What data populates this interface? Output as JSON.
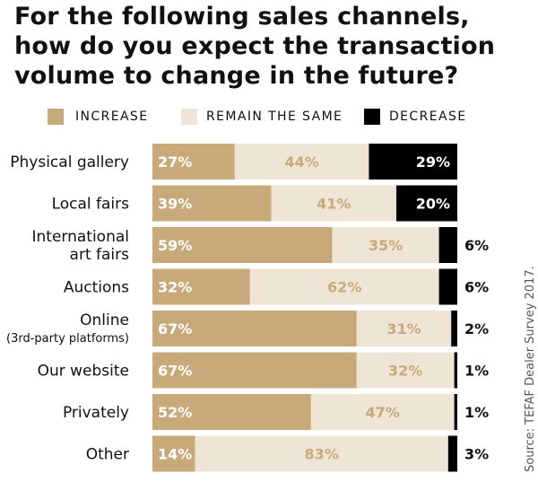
{
  "title_lines": [
    "For the following sales channels,",
    "how do you expect the transaction",
    "volume to change in the future?"
  ],
  "legend": [
    {
      "label": "INCREASE",
      "color": "#c8a97a"
    },
    {
      "label": "REMAIN THE SAME",
      "color": "#efe5d6"
    },
    {
      "label": "DECREASE",
      "color": "#000000"
    }
  ],
  "source": "Source: TEFAF Dealer Survey 2017.",
  "chart_data": {
    "type": "bar",
    "orientation": "horizontal",
    "stacked": true,
    "categories": [
      [
        "Physical gallery"
      ],
      [
        "Local fairs"
      ],
      [
        "International",
        "art fairs"
      ],
      [
        "Auctions"
      ],
      [
        "Online",
        "(3rd-party platforms)"
      ],
      [
        "Our website"
      ],
      [
        "Privately"
      ],
      [
        "Other"
      ]
    ],
    "series": [
      {
        "name": "INCREASE",
        "color": "#c8a97a",
        "values": [
          27,
          39,
          59,
          32,
          67,
          67,
          52,
          14
        ]
      },
      {
        "name": "REMAIN THE SAME",
        "color": "#efe5d6",
        "values": [
          44,
          41,
          35,
          62,
          31,
          32,
          47,
          83
        ]
      },
      {
        "name": "DECREASE",
        "color": "#000000",
        "values": [
          29,
          20,
          6,
          6,
          2,
          1,
          1,
          3
        ]
      }
    ],
    "value_labels": [
      [
        "27%",
        "44%",
        "29%"
      ],
      [
        "39%",
        "41%",
        "20%"
      ],
      [
        "59%",
        "35%",
        "6%"
      ],
      [
        "32%",
        "62%",
        "6%"
      ],
      [
        "67%",
        "31%",
        "2%"
      ],
      [
        "67%",
        "32%",
        "1%"
      ],
      [
        "52%",
        "47%",
        "1%"
      ],
      [
        "14%",
        "83%",
        "3%"
      ]
    ],
    "xlim": [
      0,
      100
    ],
    "legend_position": "top"
  }
}
